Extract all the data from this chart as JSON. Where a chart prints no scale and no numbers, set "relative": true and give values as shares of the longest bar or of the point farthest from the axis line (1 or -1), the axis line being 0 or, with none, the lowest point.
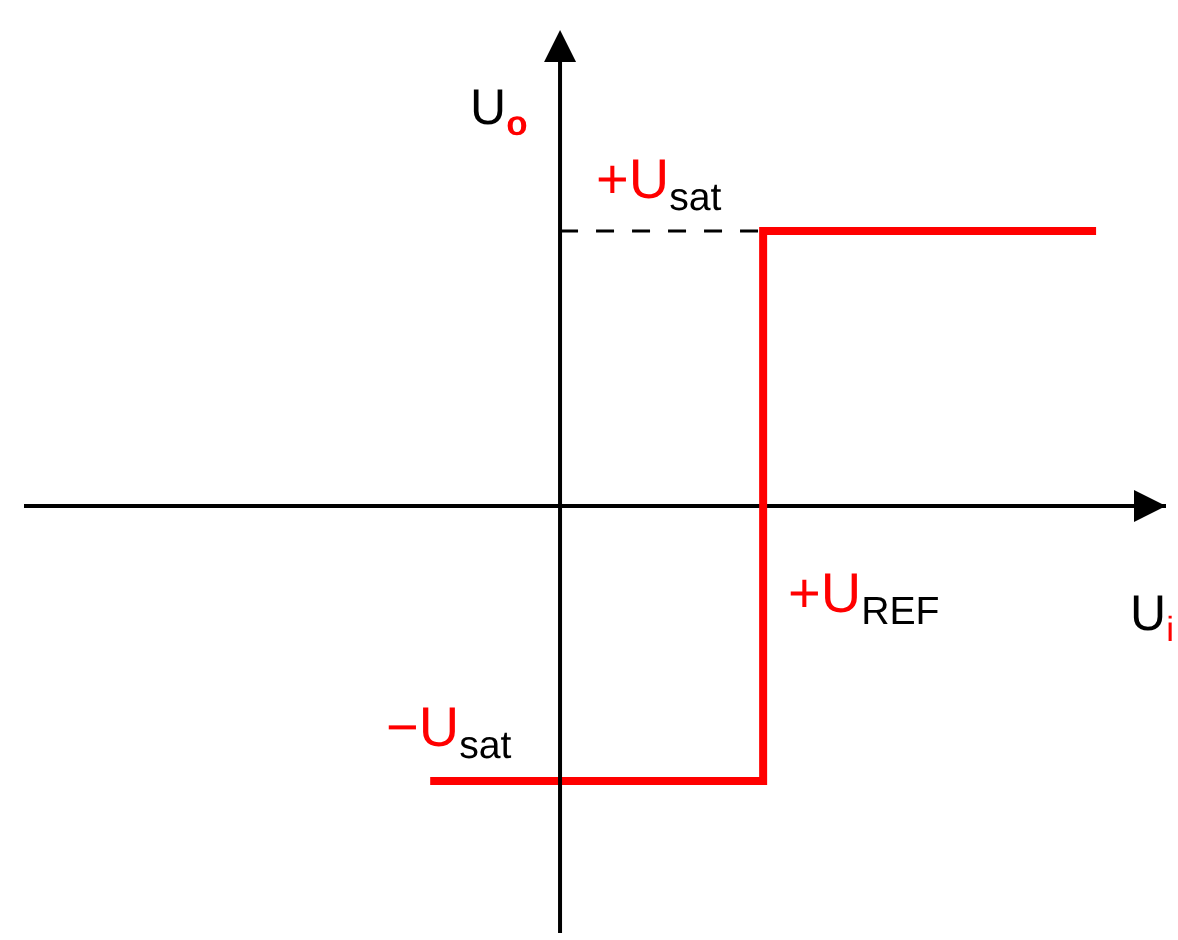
{
  "chart_data": {
    "type": "step",
    "relative": true,
    "xlabel": "U$_{i}$",
    "ylabel": "U$_{o}$",
    "categories": [
      null,
      null,
      null
    ],
    "series": [
      {
        "color": "#ff0000",
        "values": [
          -1,
          1,
          1
        ]
      }
    ],
    "ref_lines": [
      {
        "axis": "y",
        "value": 1,
        "label": "+U$_{sat}$",
        "line_style": "dashed",
        "color": "#000000"
      }
    ],
    "annotations": [
      {
        "text": "−U$_{sat}$",
        "y": -1
      },
      "+U$_{REF}$"
    ]
  }
}
